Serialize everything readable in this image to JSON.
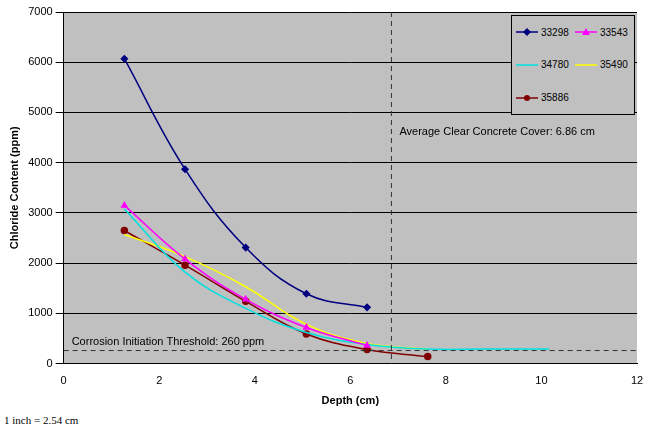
{
  "chart_data": {
    "type": "line",
    "x_label": "Depth (cm)",
    "y_label": "Chloride Content (ppm)",
    "xlim": [
      0,
      12
    ],
    "xticks": [
      0,
      2,
      4,
      6,
      8,
      10,
      12
    ],
    "ylim": [
      0,
      7000
    ],
    "yticks": [
      0,
      1000,
      2000,
      3000,
      4000,
      5000,
      6000,
      7000
    ],
    "grid": "y",
    "legend": "upper right",
    "series": [
      {
        "name": "33298",
        "color": "#000080",
        "marker": "diamond",
        "x": [
          1.27,
          2.54,
          3.81,
          5.08,
          6.35
        ],
        "values": [
          6070,
          3870,
          2310,
          1390,
          1120
        ]
      },
      {
        "name": "33543",
        "color": "#ff00ff",
        "marker": "triangle",
        "x": [
          1.27,
          2.54,
          3.81,
          5.08,
          6.35
        ],
        "values": [
          3150,
          2080,
          1280,
          720,
          360
        ]
      },
      {
        "name": "34780",
        "color": "#00e0e0",
        "marker": "none",
        "x": [
          1.27,
          2.54,
          3.81,
          5.08,
          6.35,
          7.62,
          8.89,
          10.16
        ],
        "values": [
          3080,
          1820,
          1100,
          620,
          380,
          290,
          290,
          290
        ]
      },
      {
        "name": "35490",
        "color": "#ffff00",
        "marker": "none",
        "x": [
          1.27,
          2.54,
          3.81,
          5.08,
          6.35,
          7.62
        ],
        "values": [
          2570,
          2130,
          1530,
          780,
          400,
          290
        ]
      },
      {
        "name": "35886",
        "color": "#800000",
        "marker": "circle",
        "x": [
          1.27,
          2.54,
          3.81,
          5.08,
          6.35,
          7.62
        ],
        "values": [
          2650,
          1960,
          1240,
          590,
          280,
          140
        ]
      }
    ],
    "vlines": [
      {
        "x": 6.86,
        "label": "Average Clear Concrete Cover: 6.86 cm"
      }
    ],
    "hlines": [
      {
        "y": 260,
        "label": "Corrosion Initiation Threshold: 260 ppm"
      }
    ],
    "note": "1 inch = 2.54 cm"
  }
}
